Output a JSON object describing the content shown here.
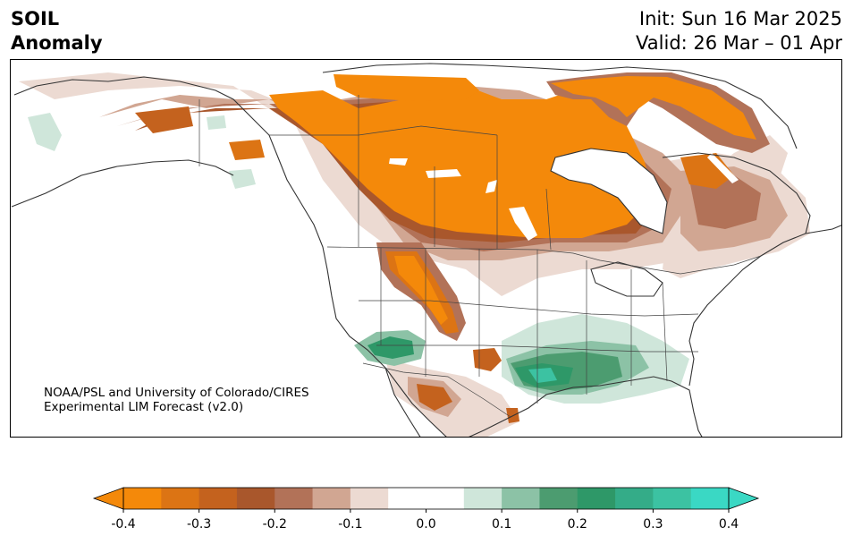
{
  "header": {
    "title_line1": "SOIL",
    "title_line2": "Anomaly",
    "init_text": "Init: Sun 16 Mar 2025",
    "valid_text": "Valid: 26 Mar – 01 Apr"
  },
  "credit": {
    "line1": "NOAA/PSL and University of Colorado/CIRES",
    "line2": "Experimental LIM Forecast (v2.0)"
  },
  "colorbar": {
    "ticks": [
      "-0.4",
      "-0.3",
      "-0.2",
      "-0.1",
      "0.0",
      "0.1",
      "0.2",
      "0.3",
      "0.4"
    ],
    "levels": [
      {
        "min": -0.4,
        "max": -0.35,
        "color": "#f4890a"
      },
      {
        "min": -0.35,
        "max": -0.3,
        "color": "#dc7414"
      },
      {
        "min": -0.3,
        "max": -0.25,
        "color": "#c4621e"
      },
      {
        "min": -0.25,
        "max": -0.2,
        "color": "#a9572c"
      },
      {
        "min": -0.2,
        "max": -0.15,
        "color": "#b27258"
      },
      {
        "min": -0.15,
        "max": -0.1,
        "color": "#d1a692"
      },
      {
        "min": -0.1,
        "max": -0.05,
        "color": "#ecdad2"
      },
      {
        "min": -0.05,
        "max": 0.05,
        "color": "#ffffff"
      },
      {
        "min": 0.05,
        "max": 0.1,
        "color": "#cfe6da"
      },
      {
        "min": 0.1,
        "max": 0.15,
        "color": "#8cc2a6"
      },
      {
        "min": 0.15,
        "max": 0.2,
        "color": "#4c9c70"
      },
      {
        "min": 0.2,
        "max": 0.25,
        "color": "#2e9868"
      },
      {
        "min": 0.25,
        "max": 0.3,
        "color": "#34ac88"
      },
      {
        "min": 0.3,
        "max": 0.35,
        "color": "#3cc2a2"
      },
      {
        "min": 0.35,
        "max": 0.4,
        "color": "#3ad8c4"
      }
    ],
    "extend_low_color": "#f4890a",
    "extend_high_color": "#3ad8c4"
  }
}
